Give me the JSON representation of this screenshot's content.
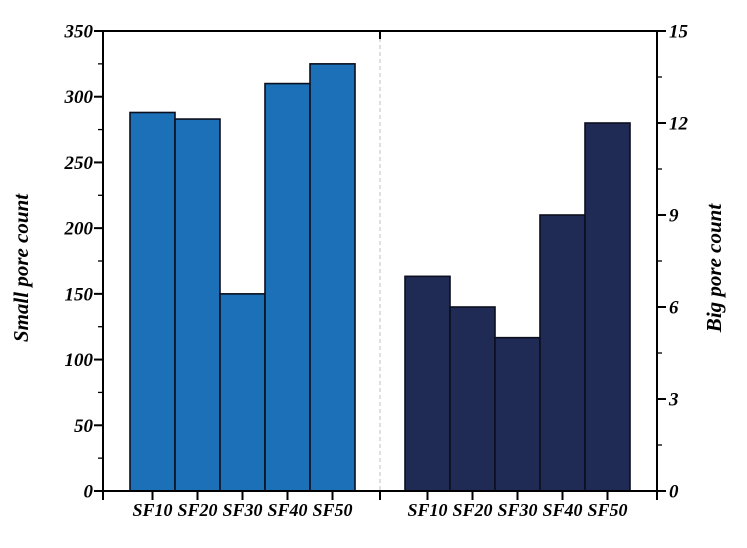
{
  "page": {
    "background_color": "#ffffff"
  },
  "chart_data": {
    "type": "bar",
    "title": "",
    "grid": false,
    "legend": null,
    "frame_color": "#000000",
    "separator": {
      "style": "dashed",
      "color": "#cbcbcb"
    },
    "groups": [
      {
        "name": "small-pores",
        "axis_side": "left",
        "ylabel": "Small pore count",
        "categories": [
          "SF10",
          "SF20",
          "SF30",
          "SF40",
          "SF50"
        ],
        "values": [
          288,
          283,
          150,
          310,
          325
        ],
        "bar_color": "#1b70b7",
        "bar_edge_color": "#0c0f1e",
        "ylim": [
          0,
          350
        ],
        "yticks": [
          0,
          50,
          100,
          150,
          200,
          250,
          300,
          350
        ],
        "yminor_step": 25
      },
      {
        "name": "big-pores",
        "axis_side": "right",
        "ylabel": "Big pore count",
        "categories": [
          "SF10",
          "SF20",
          "SF30",
          "SF40",
          "SF50"
        ],
        "values": [
          7,
          6,
          5,
          9,
          12
        ],
        "bar_color": "#1f2a55",
        "bar_edge_color": "#0c0f1e",
        "ylim": [
          0,
          15
        ],
        "yticks": [
          0,
          3,
          6,
          9,
          12,
          15
        ],
        "yminor_step": 1.5
      }
    ]
  }
}
